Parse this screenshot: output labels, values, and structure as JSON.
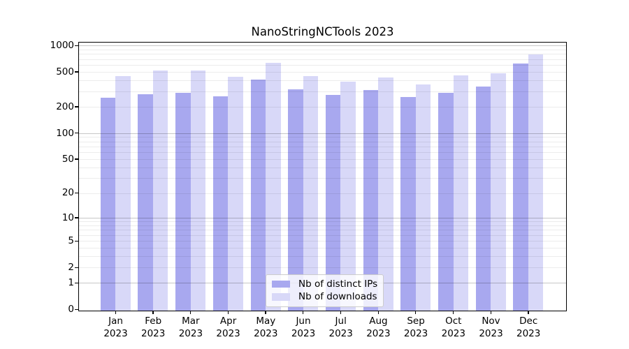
{
  "title": "NanoStringNCTools 2023",
  "chart_data": {
    "type": "bar",
    "title": "NanoStringNCTools 2023",
    "categories": [
      "Jan",
      "Feb",
      "Mar",
      "Apr",
      "May",
      "Jun",
      "Jul",
      "Aug",
      "Sep",
      "Oct",
      "Nov",
      "Dec"
    ],
    "year_label": "2023",
    "series": [
      {
        "name": "Nb of distinct IPs",
        "color": "#a8a8ef",
        "values": [
          253,
          277,
          292,
          262,
          412,
          316,
          274,
          309,
          257,
          291,
          339,
          622
        ]
      },
      {
        "name": "Nb of downloads",
        "color": "#d8d8f8",
        "values": [
          452,
          517,
          517,
          444,
          634,
          452,
          385,
          434,
          359,
          461,
          487,
          789
        ]
      }
    ],
    "xlabel": "",
    "ylabel": "",
    "yscale": "log10(value+1)",
    "ylim": [
      0,
      1075
    ],
    "yticks": [
      0,
      1,
      2,
      5,
      10,
      20,
      50,
      100,
      200,
      500,
      1000
    ],
    "grid_major_values": [
      1,
      10,
      100,
      1000
    ],
    "grid_minor_values": [
      2,
      3,
      4,
      5,
      6,
      7,
      8,
      9,
      20,
      30,
      40,
      50,
      60,
      70,
      80,
      90,
      200,
      300,
      400,
      500,
      600,
      700,
      800,
      900
    ],
    "grid": "horizontal, drawn above bars",
    "legend_position": "lower center"
  },
  "colors": {
    "background": "#ffffff",
    "spine": "#000000",
    "tick_text": "#000000",
    "legend_border": "#cccccc",
    "series_distinct_ips": "#a8a8ef",
    "series_downloads": "#d8d8f8"
  }
}
